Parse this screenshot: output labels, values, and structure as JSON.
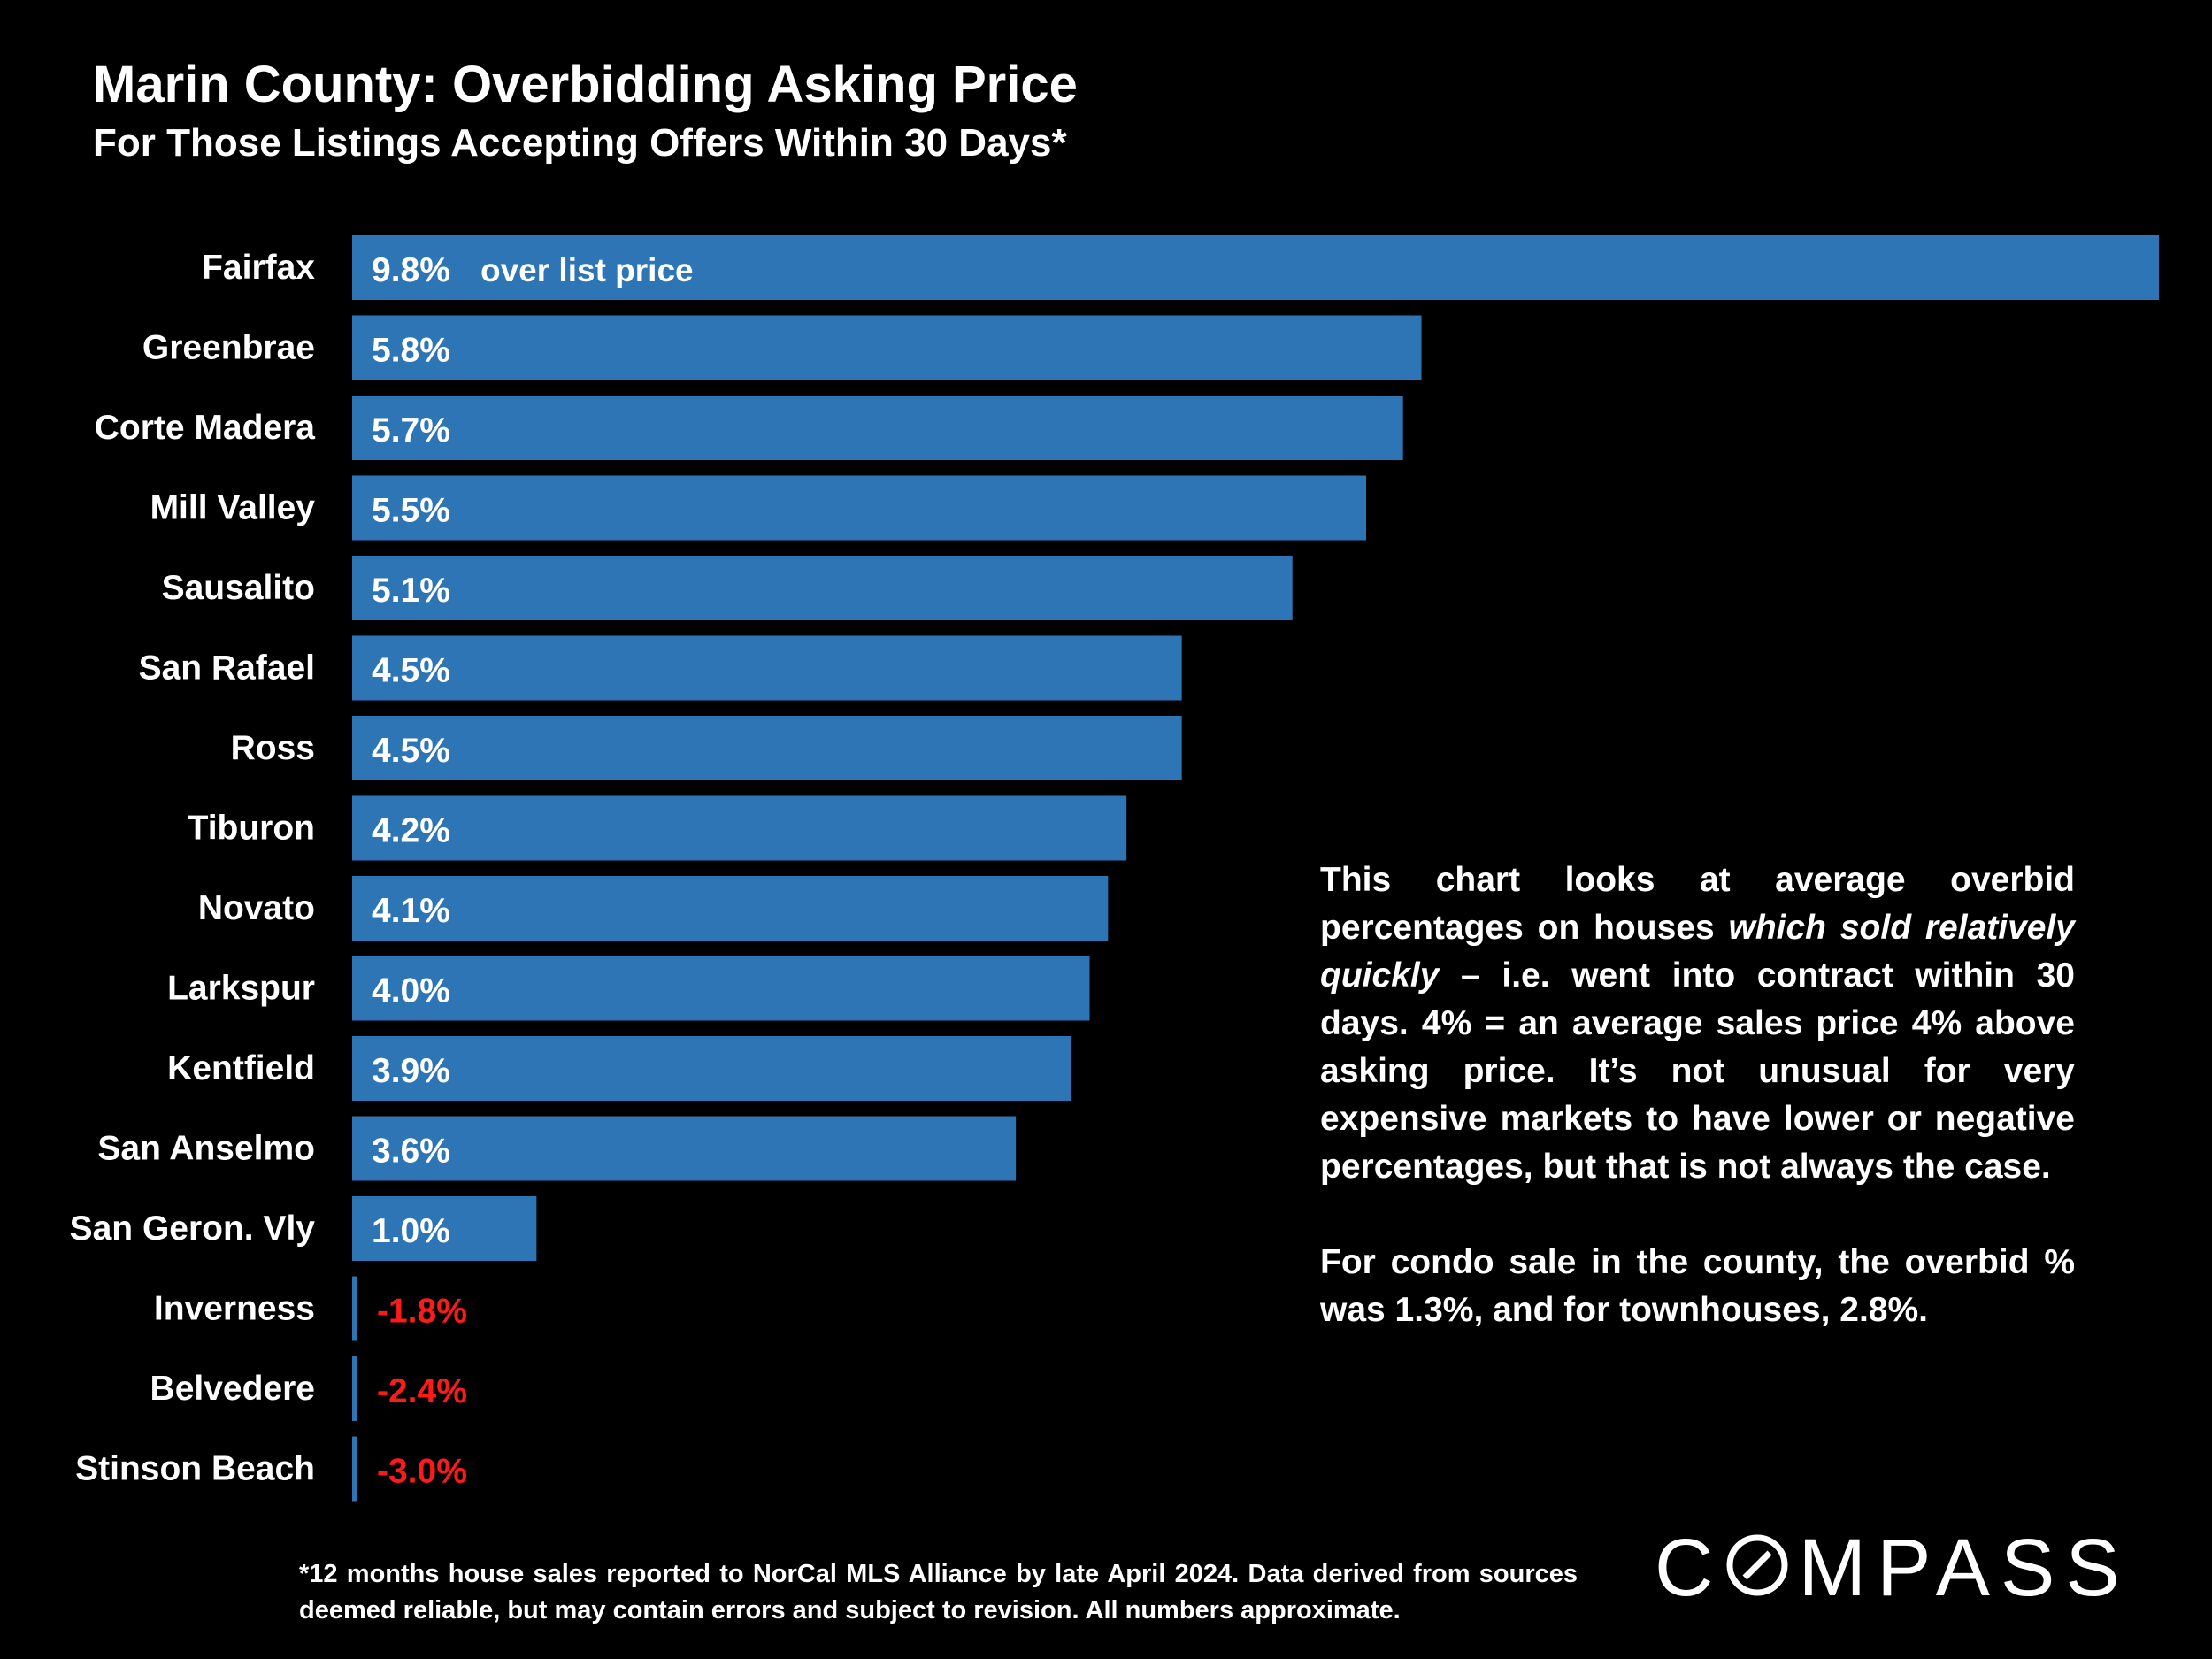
{
  "title": "Marin County: Overbidding Asking Price",
  "subtitle": "For Those Listings Accepting Offers Within 30 Days*",
  "chart_data": {
    "type": "bar",
    "orientation": "horizontal",
    "categories": [
      "Fairfax",
      "Greenbrae",
      "Corte Madera",
      "Mill Valley",
      "Sausalito",
      "San Rafael",
      "Ross",
      "Tiburon",
      "Novato",
      "Larkspur",
      "Kentfield",
      "San Anselmo",
      "San Geron. Vly",
      "Inverness",
      "Belvedere",
      "Stinson Beach"
    ],
    "values": [
      9.8,
      5.8,
      5.7,
      5.5,
      5.1,
      4.5,
      4.5,
      4.2,
      4.1,
      4.0,
      3.9,
      3.6,
      1.0,
      -1.8,
      -2.4,
      -3.0
    ],
    "value_labels": [
      "9.8%",
      "5.8%",
      "5.7%",
      "5.5%",
      "5.1%",
      "4.5%",
      "4.5%",
      "4.2%",
      "4.1%",
      "4.0%",
      "3.9%",
      "3.6%",
      "1.0%",
      "-1.8%",
      "-2.4%",
      "-3.0%"
    ],
    "first_label_suffix": "over list price",
    "bar_color": "#2E75B6",
    "negative_label_color": "#FF1A1A",
    "positive_label_color": "#FFFFFF"
  },
  "note": {
    "p1_a": "This chart looks at average overbid percentages on houses ",
    "p1_em": "which sold relatively quickly",
    "p1_b": " – i.e. went into contract within 30 days. 4% = an average sales price 4% above asking price. It’s not unusual for very expensive markets to have lower or negative percentages, but that is not always the case.",
    "p2": "For condo sale in the county, the overbid % was 1.3%, and for townhouses, 2.8%."
  },
  "footnote": "*12 months house sales reported to NorCal MLS Alliance by late April 2024. Data derived from sources deemed reliable, but may contain errors and subject to revision. All numbers  approximate.",
  "logo": {
    "pre": "C",
    "post": "MPASS"
  }
}
